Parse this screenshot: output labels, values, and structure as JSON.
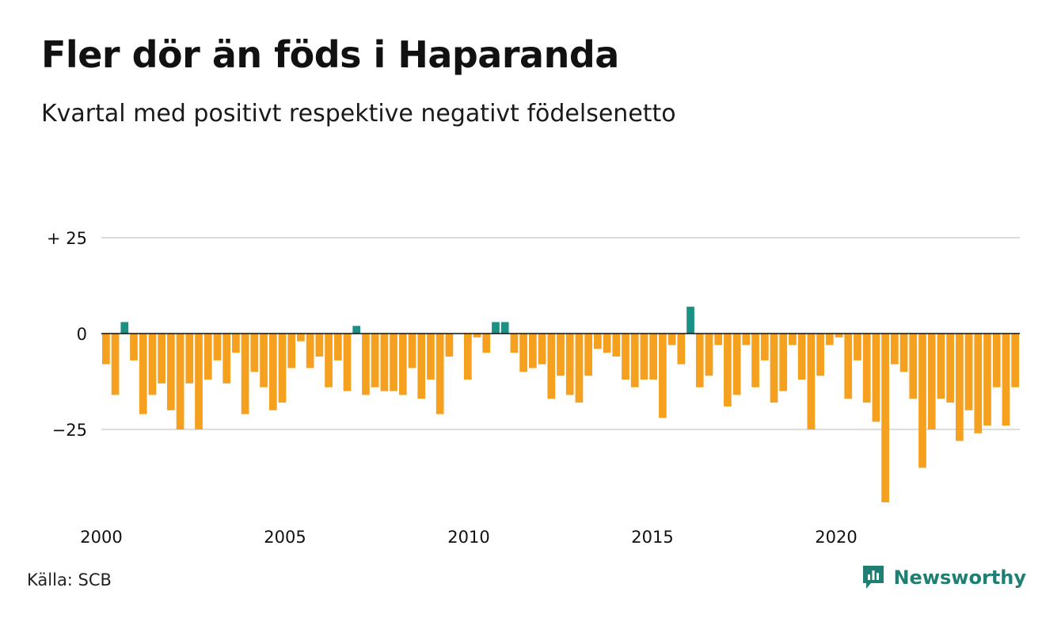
{
  "title": "Fler dör än föds i Haparanda",
  "subtitle": "Kvartal med positivt respektive negativt födelsenetto",
  "source": "Källa: SCB",
  "brand": "Newsworthy",
  "brand_icon": "bar-chart-logo-icon",
  "colors": {
    "positive": "#1a9184",
    "negative": "#f5a11f",
    "grid": "#dddddd",
    "zero_line": "#111111",
    "brand": "#1f7f73"
  },
  "chart_data": {
    "type": "bar",
    "title": "Fler dör än föds i Haparanda",
    "subtitle": "Kvartal med positivt respektive negativt födelsenetto",
    "xlabel": "",
    "ylabel": "",
    "ylim": [
      -45,
      25
    ],
    "x_start": 2000,
    "x_end": 2025,
    "x_ticks": [
      {
        "value": 2000,
        "label": "2000"
      },
      {
        "value": 2005,
        "label": "2005"
      },
      {
        "value": 2010,
        "label": "2010"
      },
      {
        "value": 2015,
        "label": "2015"
      },
      {
        "value": 2020,
        "label": "2020"
      }
    ],
    "y_ticks": [
      {
        "value": 25,
        "label": "+ 25"
      },
      {
        "value": 0,
        "label": "0"
      },
      {
        "value": -25,
        "label": "−25"
      }
    ],
    "grid": true,
    "start_period": "2000 Q1",
    "period": "quarter",
    "values": [
      -8,
      -16,
      3,
      -7,
      -21,
      -16,
      -13,
      -20,
      -25,
      -13,
      -25,
      -12,
      -7,
      -13,
      -5,
      -21,
      -10,
      -14,
      -20,
      -18,
      -9,
      -2,
      -9,
      -6,
      -14,
      -7,
      -15,
      2,
      -16,
      -14,
      -15,
      -15,
      -16,
      -9,
      -17,
      -12,
      -21,
      -6,
      0,
      -12,
      -1,
      -5,
      3,
      3,
      -5,
      -10,
      -9,
      -8,
      -17,
      -11,
      -16,
      -18,
      -11,
      -4,
      -5,
      -6,
      -12,
      -14,
      -12,
      -12,
      -22,
      -3,
      -8,
      7,
      -14,
      -11,
      -3,
      -19,
      -16,
      -3,
      -14,
      -7,
      -18,
      -15,
      -3,
      -12,
      -25,
      -11,
      -3,
      -1,
      -17,
      -7,
      -18,
      -23,
      -44,
      -8,
      -10,
      -17,
      -35,
      -25,
      -17,
      -18,
      -28,
      -20,
      -26,
      -24,
      -14,
      -24,
      -14
    ]
  }
}
